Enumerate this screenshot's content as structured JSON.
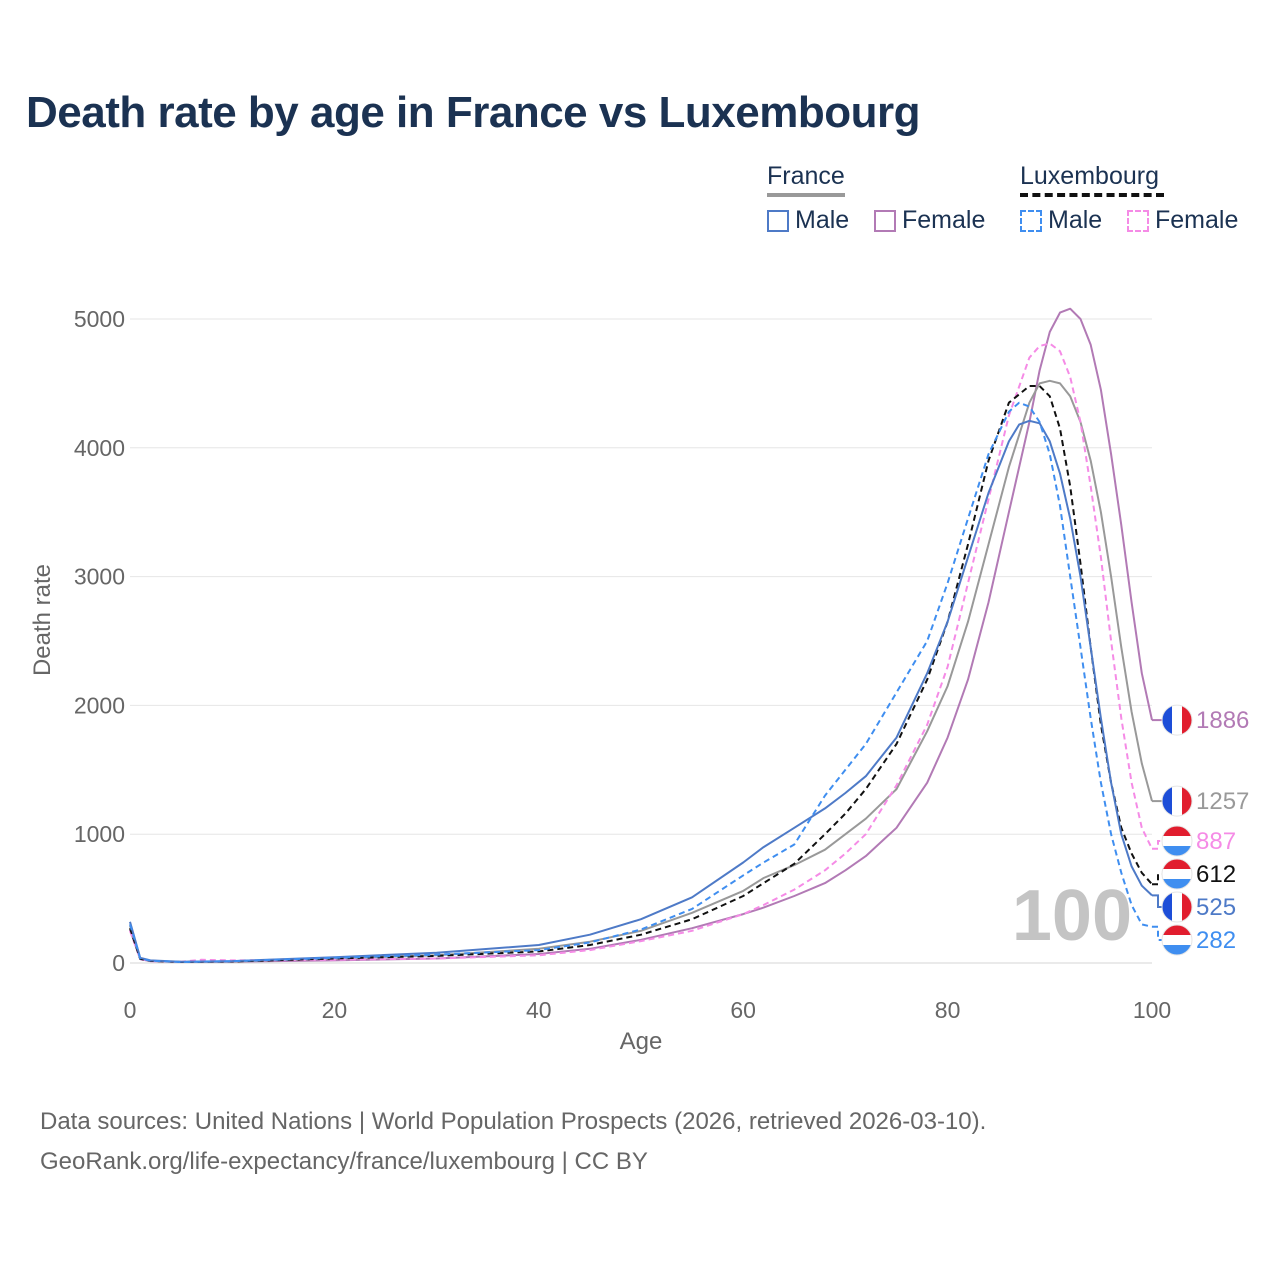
{
  "title": "Death rate by age in France vs Luxembourg",
  "legend": {
    "groups": [
      {
        "name": "France",
        "line_style": "solid",
        "underline_color": "#999999",
        "items": [
          {
            "label": "Male",
            "color": "#4e7ac7"
          },
          {
            "label": "Female",
            "color": "#b27ab5"
          }
        ]
      },
      {
        "name": "Luxembourg",
        "line_style": "dashed",
        "underline_color": "#111111",
        "items": [
          {
            "label": "Male",
            "color": "#3f8ef0"
          },
          {
            "label": "Female",
            "color": "#f58be6"
          }
        ]
      }
    ]
  },
  "chart_data": {
    "type": "line",
    "title": "Death rate by age in France vs Luxembourg",
    "xlabel": "Age",
    "ylabel": "Death rate",
    "xlim": [
      0,
      100
    ],
    "ylim": [
      0,
      5000
    ],
    "xticks": [
      0,
      20,
      40,
      60,
      80,
      100
    ],
    "yticks": [
      0,
      1000,
      2000,
      3000,
      4000,
      5000
    ],
    "grid": true,
    "watermark": "100",
    "series": [
      {
        "name": "France Female",
        "country": "France",
        "sex": "Female",
        "dashed": false,
        "color": "#b27ab5",
        "end_label": "1886",
        "end_value": 1886,
        "x": [
          0,
          1,
          2,
          5,
          10,
          20,
          30,
          40,
          45,
          50,
          55,
          60,
          62,
          65,
          68,
          70,
          72,
          75,
          78,
          80,
          82,
          84,
          86,
          88,
          89,
          90,
          91,
          92,
          93,
          94,
          95,
          96,
          97,
          98,
          99,
          100
        ],
        "y": [
          260,
          30,
          15,
          8,
          10,
          20,
          35,
          70,
          110,
          180,
          270,
          380,
          430,
          520,
          620,
          720,
          830,
          1050,
          1400,
          1750,
          2200,
          2800,
          3500,
          4200,
          4600,
          4900,
          5050,
          5080,
          5000,
          4800,
          4450,
          3950,
          3400,
          2800,
          2250,
          1886
        ]
      },
      {
        "name": "France Total",
        "country": "France",
        "sex": "Total",
        "dashed": false,
        "color": "#999999",
        "end_label": "1257",
        "end_value": 1257,
        "x": [
          0,
          1,
          2,
          5,
          10,
          20,
          30,
          40,
          45,
          50,
          55,
          60,
          62,
          65,
          68,
          70,
          72,
          75,
          78,
          80,
          82,
          84,
          86,
          88,
          89,
          90,
          91,
          92,
          93,
          94,
          95,
          96,
          97,
          98,
          99,
          100
        ],
        "y": [
          290,
          35,
          18,
          8,
          12,
          35,
          60,
          110,
          165,
          250,
          390,
          560,
          660,
          760,
          880,
          1000,
          1120,
          1350,
          1800,
          2150,
          2650,
          3250,
          3850,
          4350,
          4500,
          4520,
          4500,
          4400,
          4200,
          3900,
          3500,
          3000,
          2450,
          1950,
          1550,
          1257
        ]
      },
      {
        "name": "Luxembourg Female",
        "country": "Luxembourg",
        "sex": "Female",
        "dashed": true,
        "color": "#f58be6",
        "end_label": "887",
        "end_value": 887,
        "x": [
          0,
          1,
          2,
          5,
          7,
          10,
          20,
          30,
          40,
          45,
          50,
          55,
          60,
          62,
          65,
          68,
          70,
          72,
          75,
          78,
          80,
          82,
          84,
          86,
          88,
          89,
          90,
          91,
          92,
          93,
          94,
          95,
          96,
          97,
          98,
          99,
          100
        ],
        "y": [
          250,
          30,
          15,
          10,
          25,
          20,
          25,
          35,
          60,
          100,
          170,
          250,
          380,
          450,
          570,
          720,
          850,
          1000,
          1380,
          1850,
          2300,
          2950,
          3600,
          4250,
          4700,
          4790,
          4810,
          4750,
          4550,
          4200,
          3700,
          3150,
          2500,
          1900,
          1400,
          1050,
          887
        ]
      },
      {
        "name": "Luxembourg Total",
        "country": "Luxembourg",
        "sex": "Total",
        "dashed": true,
        "color": "#111111",
        "end_label": "612",
        "end_value": 612,
        "x": [
          0,
          1,
          2,
          5,
          10,
          20,
          30,
          40,
          45,
          50,
          55,
          60,
          62,
          65,
          68,
          70,
          72,
          75,
          78,
          80,
          82,
          84,
          86,
          88,
          89,
          90,
          91,
          92,
          93,
          94,
          95,
          96,
          97,
          98,
          99,
          100
        ],
        "y": [
          270,
          32,
          16,
          8,
          12,
          35,
          55,
          90,
          140,
          220,
          340,
          520,
          620,
          770,
          1000,
          1160,
          1350,
          1700,
          2200,
          2650,
          3250,
          3900,
          4350,
          4480,
          4480,
          4400,
          4150,
          3700,
          3100,
          2450,
          1850,
          1400,
          1050,
          850,
          700,
          612
        ]
      },
      {
        "name": "France Male",
        "country": "France",
        "sex": "Male",
        "dashed": false,
        "color": "#4e7ac7",
        "end_label": "525",
        "end_value": 525,
        "x": [
          0,
          1,
          2,
          5,
          10,
          20,
          30,
          40,
          45,
          50,
          55,
          60,
          62,
          65,
          68,
          70,
          72,
          75,
          78,
          80,
          82,
          84,
          86,
          87,
          88,
          89,
          90,
          91,
          92,
          93,
          94,
          95,
          96,
          97,
          98,
          99,
          100
        ],
        "y": [
          320,
          40,
          20,
          10,
          15,
          45,
          80,
          140,
          220,
          340,
          510,
          780,
          900,
          1050,
          1200,
          1320,
          1450,
          1750,
          2250,
          2650,
          3150,
          3650,
          4050,
          4180,
          4210,
          4190,
          4050,
          3800,
          3450,
          3000,
          2450,
          1900,
          1400,
          1000,
          750,
          600,
          525
        ]
      },
      {
        "name": "Luxembourg Male",
        "country": "Luxembourg",
        "sex": "Male",
        "dashed": true,
        "color": "#3f8ef0",
        "end_label": "282",
        "end_value": 282,
        "x": [
          0,
          1,
          2,
          5,
          10,
          20,
          30,
          40,
          45,
          50,
          55,
          60,
          62,
          65,
          68,
          70,
          72,
          75,
          78,
          80,
          82,
          84,
          86,
          87,
          88,
          89,
          90,
          91,
          92,
          93,
          94,
          95,
          96,
          97,
          98,
          99,
          100
        ],
        "y": [
          300,
          35,
          18,
          8,
          14,
          40,
          65,
          100,
          160,
          260,
          420,
          680,
          780,
          920,
          1300,
          1500,
          1700,
          2100,
          2500,
          2950,
          3450,
          3950,
          4280,
          4350,
          4320,
          4200,
          3950,
          3550,
          3000,
          2450,
          1900,
          1400,
          1000,
          700,
          450,
          300,
          282
        ]
      }
    ]
  },
  "source": {
    "line1": "Data sources: United Nations | World Population Prospects (2026, retrieved 2026-03-10).",
    "line2": "GeoRank.org/life-expectancy/france/luxembourg | CC BY"
  }
}
